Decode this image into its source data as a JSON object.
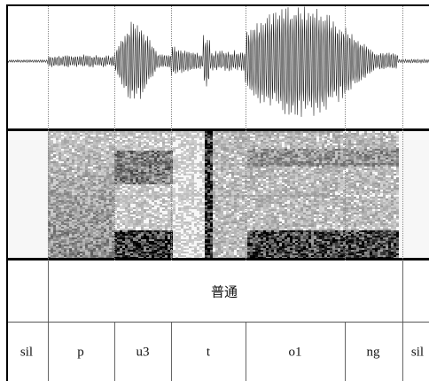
{
  "word_tier": {
    "label": "普通"
  },
  "phone_tier": {
    "segments": [
      {
        "label": "sil"
      },
      {
        "label": "p"
      },
      {
        "label": "u3"
      },
      {
        "label": "t"
      },
      {
        "label": "o1"
      },
      {
        "label": "ng"
      },
      {
        "label": "sil"
      }
    ]
  },
  "colors": {
    "background": "#ffffff",
    "border": "#000000",
    "waveform": "#222222",
    "spectrogram_dark": "#1a1a1a"
  }
}
